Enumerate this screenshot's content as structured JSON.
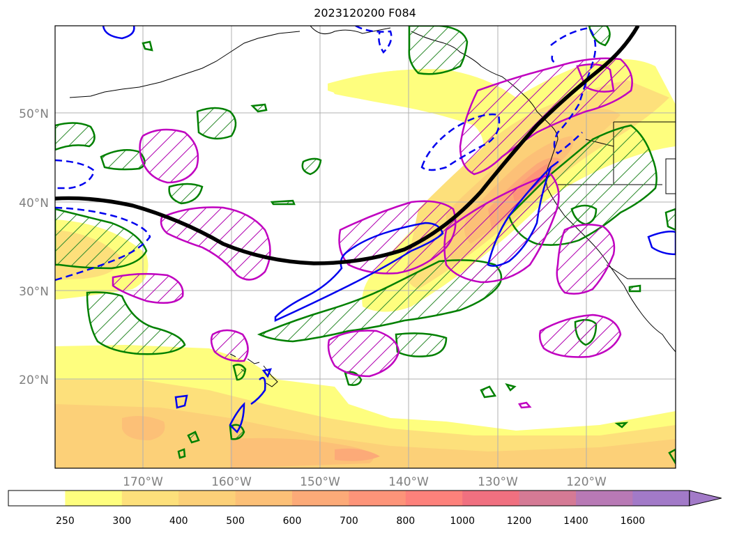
{
  "title": "2023120200 F084",
  "map": {
    "lat_labels": [
      "50°N",
      "40°N",
      "30°N",
      "20°N"
    ],
    "lon_labels": [
      "170°W",
      "160°W",
      "150°W",
      "140°W",
      "130°W",
      "120°W"
    ],
    "grid": true,
    "land_outline_color": "#000000",
    "jet_axis_color": "#000000",
    "contour_colors": {
      "green": "#008000",
      "magenta": "#c000c0",
      "blue": "#0000ee"
    }
  },
  "colorbar": {
    "labels": [
      "250",
      "300",
      "400",
      "500",
      "600",
      "700",
      "800",
      "1000",
      "1200",
      "1400",
      "1600"
    ],
    "colors": [
      "#ffffff",
      "#fefe7e",
      "#fde07b",
      "#fcd078",
      "#fcc077",
      "#fcaa78",
      "#fd9479",
      "#fd817b",
      "#f07080",
      "#d57a95",
      "#b879b5",
      "#a27ac8"
    ],
    "extend": "max"
  }
}
